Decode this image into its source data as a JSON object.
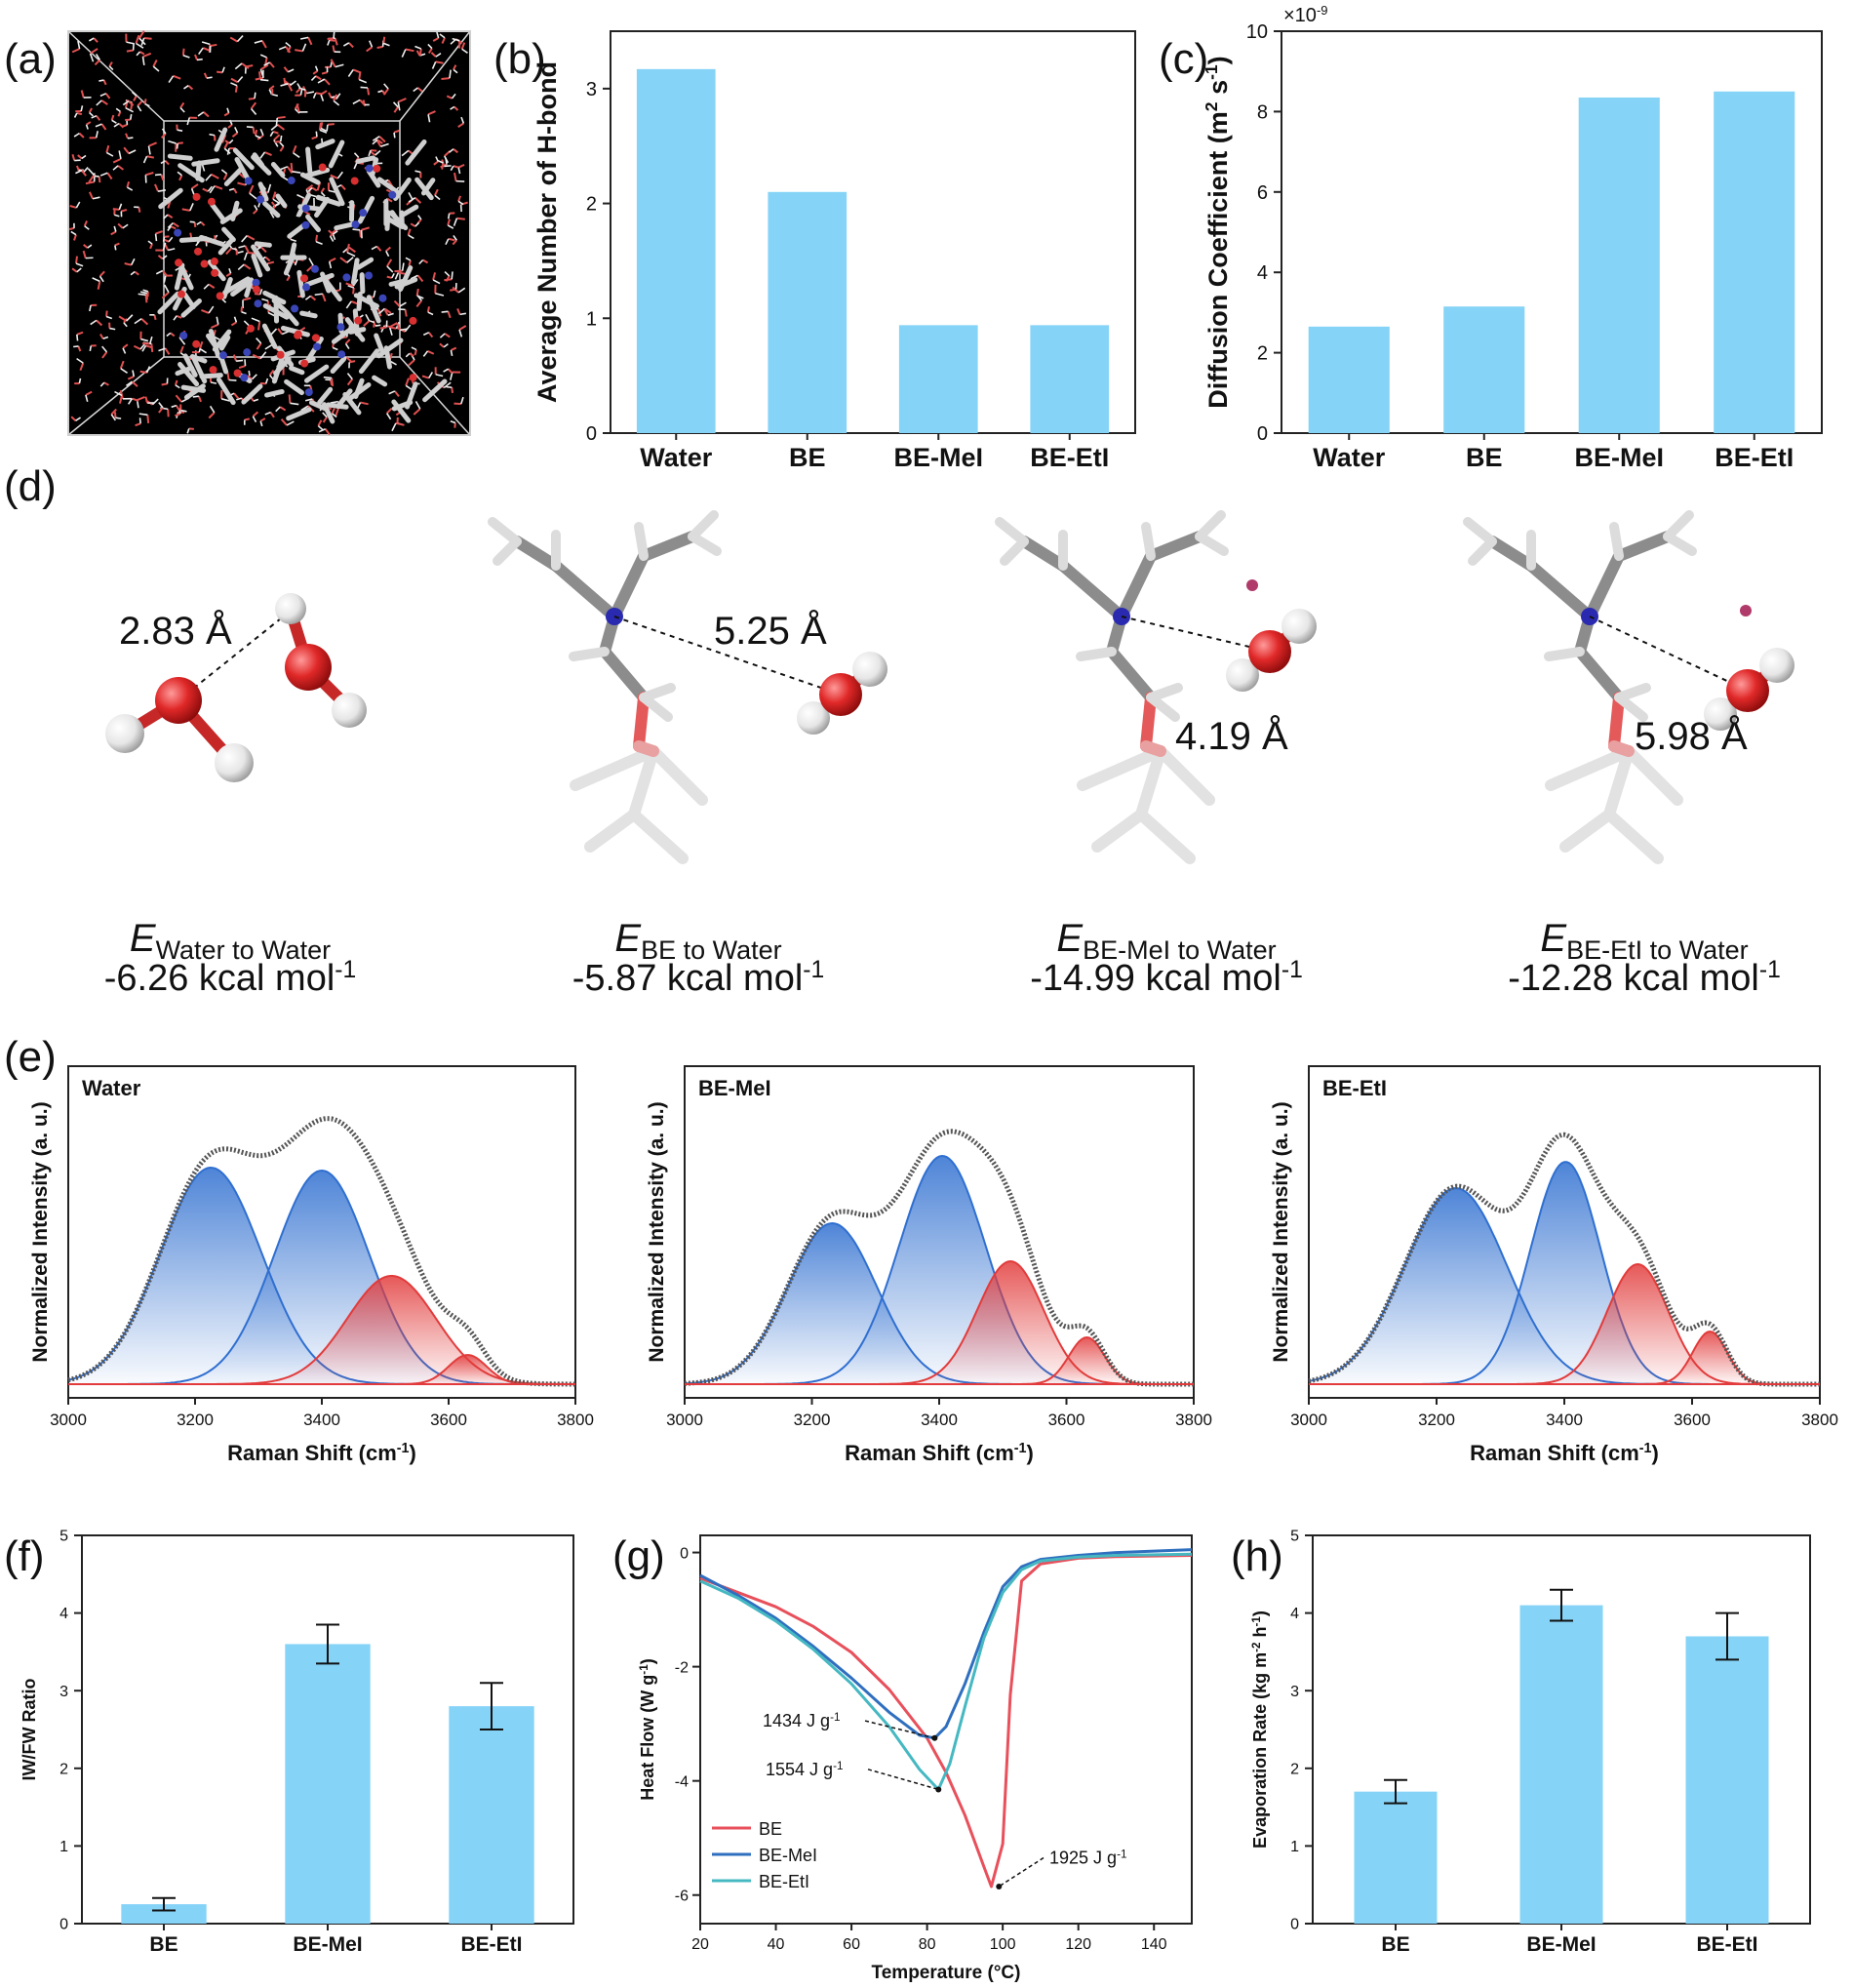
{
  "panel_letters": [
    "(a)",
    "(b)",
    "(c)",
    "(d)",
    "(e)",
    "(f)",
    "(g)",
    "(h)"
  ],
  "colors": {
    "bar": "#85d3f7",
    "blue_band": "#2f6fd0",
    "red_band": "#e23b3b",
    "envelope": "#555555",
    "line_be": "#e8505b",
    "line_bemei": "#2f6fbf",
    "line_beeti": "#45b8c2"
  },
  "panel_d": {
    "distances": [
      "2.83 Å",
      "5.25 Å",
      "4.19 Å",
      "5.98 Å"
    ],
    "energies": [
      {
        "symbol": "E",
        "subscript": "Water to Water",
        "value": "-6.26 kcal mol",
        "sup": "-1"
      },
      {
        "symbol": "E",
        "subscript": "BE to Water",
        "value": "-5.87 kcal mol",
        "sup": "-1"
      },
      {
        "symbol": "E",
        "subscript": "BE-MeI to Water",
        "value": "-14.99 kcal mol",
        "sup": "-1"
      },
      {
        "symbol": "E",
        "subscript": "BE-EtI to Water",
        "value": "-12.28 kcal mol",
        "sup": "-1"
      }
    ]
  },
  "chart_data": [
    {
      "id": "b",
      "type": "bar",
      "categories": [
        "Water",
        "BE",
        "BE-MeI",
        "BE-EtI"
      ],
      "values": [
        3.17,
        2.1,
        0.94,
        0.94
      ],
      "ylabel": "Average Number of H-bond",
      "ylim": [
        0,
        3.5
      ],
      "yticks": [
        0,
        1,
        2,
        3
      ]
    },
    {
      "id": "c",
      "type": "bar",
      "categories": [
        "Water",
        "BE",
        "BE-MeI",
        "BE-EtI"
      ],
      "values": [
        2.65,
        3.15,
        8.35,
        8.5
      ],
      "ylabel": "Diffusion Coefficient (m",
      "ylabel_sup": "2",
      "ylabel_mid": " s",
      "ylabel_sup2": "-1",
      "ylabel_end": ")",
      "scale_label": "×10",
      "scale_sup": "-9",
      "ylim": [
        0,
        10
      ],
      "yticks": [
        0,
        2,
        4,
        6,
        8,
        10
      ]
    },
    {
      "id": "e",
      "type": "area",
      "xlabel": "Raman Shift (cm",
      "xlabel_sup": "-1",
      "xlabel_end": ")",
      "ylabel": "Normalized Intensity (a. u.)",
      "xlim": [
        3000,
        3800
      ],
      "xticks": [
        3000,
        3200,
        3400,
        3600,
        3800
      ],
      "subplots": [
        {
          "label": "Water",
          "peaks": [
            {
              "center": 3225,
              "amp": 0.74,
              "sigma": 80,
              "band": "blue"
            },
            {
              "center": 3400,
              "amp": 0.73,
              "sigma": 75,
              "band": "blue"
            },
            {
              "center": 3510,
              "amp": 0.37,
              "sigma": 70,
              "band": "red"
            },
            {
              "center": 3630,
              "amp": 0.1,
              "sigma": 30,
              "band": "red"
            }
          ]
        },
        {
          "label": "BE-MeI",
          "peaks": [
            {
              "center": 3232,
              "amp": 0.55,
              "sigma": 70,
              "band": "blue"
            },
            {
              "center": 3405,
              "amp": 0.78,
              "sigma": 68,
              "band": "blue"
            },
            {
              "center": 3512,
              "amp": 0.42,
              "sigma": 52,
              "band": "red"
            },
            {
              "center": 3632,
              "amp": 0.16,
              "sigma": 28,
              "band": "red"
            }
          ]
        },
        {
          "label": "BE-EtI",
          "peaks": [
            {
              "center": 3230,
              "amp": 0.67,
              "sigma": 80,
              "band": "blue"
            },
            {
              "center": 3402,
              "amp": 0.76,
              "sigma": 55,
              "band": "blue"
            },
            {
              "center": 3515,
              "amp": 0.41,
              "sigma": 48,
              "band": "red"
            },
            {
              "center": 3628,
              "amp": 0.18,
              "sigma": 27,
              "band": "red"
            }
          ]
        }
      ]
    },
    {
      "id": "f",
      "type": "bar",
      "categories": [
        "BE",
        "BE-MeI",
        "BE-EtI"
      ],
      "values": [
        0.25,
        3.6,
        2.8
      ],
      "errors": [
        0.08,
        0.25,
        0.3
      ],
      "ylabel": "IW/FW Ratio",
      "ylim": [
        0,
        5
      ],
      "yticks": [
        0,
        1,
        2,
        3,
        4,
        5
      ]
    },
    {
      "id": "g",
      "type": "line",
      "xlabel": "Temperature (°C)",
      "ylabel": "Heat Flow (W g",
      "ylabel_sup": "-1",
      "ylabel_end": ")",
      "xlim": [
        20,
        150
      ],
      "ylim": [
        -6.5,
        0.3
      ],
      "xticks": [
        20,
        40,
        60,
        80,
        100,
        120,
        140
      ],
      "yticks": [
        0,
        -2,
        -4,
        -6
      ],
      "legend_position": "bottom-left",
      "series": [
        {
          "name": "BE",
          "x": [
            20,
            30,
            40,
            50,
            60,
            70,
            80,
            85,
            90,
            95,
            97,
            100,
            102,
            105,
            110,
            120,
            130,
            150
          ],
          "y": [
            -0.45,
            -0.7,
            -0.95,
            -1.3,
            -1.75,
            -2.4,
            -3.25,
            -3.85,
            -4.6,
            -5.5,
            -5.85,
            -5.1,
            -2.5,
            -0.5,
            -0.2,
            -0.1,
            -0.07,
            -0.05
          ]
        },
        {
          "name": "BE-MeI",
          "x": [
            20,
            30,
            40,
            50,
            60,
            70,
            78,
            82,
            85,
            90,
            95,
            100,
            105,
            110,
            120,
            130,
            150
          ],
          "y": [
            -0.4,
            -0.75,
            -1.15,
            -1.65,
            -2.2,
            -2.8,
            -3.2,
            -3.25,
            -3.05,
            -2.3,
            -1.4,
            -0.6,
            -0.25,
            -0.12,
            -0.05,
            0.0,
            0.05
          ]
        },
        {
          "name": "BE-EtI",
          "x": [
            20,
            30,
            40,
            50,
            60,
            70,
            78,
            83,
            86,
            90,
            95,
            100,
            105,
            110,
            120,
            130,
            150
          ],
          "y": [
            -0.5,
            -0.8,
            -1.2,
            -1.7,
            -2.3,
            -3.05,
            -3.8,
            -4.15,
            -3.7,
            -2.7,
            -1.5,
            -0.7,
            -0.3,
            -0.15,
            -0.08,
            -0.05,
            -0.03
          ]
        }
      ],
      "annotations": [
        {
          "text": "1434 J g",
          "sup": "-1"
        },
        {
          "text": "1554 J g",
          "sup": "-1"
        },
        {
          "text": "1925 J g",
          "sup": "-1"
        }
      ]
    },
    {
      "id": "h",
      "type": "bar",
      "categories": [
        "BE",
        "BE-MeI",
        "BE-EtI"
      ],
      "values": [
        1.7,
        4.1,
        3.7
      ],
      "errors": [
        0.15,
        0.2,
        0.3
      ],
      "ylabel": "Evaporation Rate (kg m",
      "ylabel_sup": "-2",
      "ylabel_mid": " h",
      "ylabel_sup2": "-1",
      "ylabel_end": ")",
      "ylim": [
        0,
        5
      ],
      "yticks": [
        0,
        1,
        2,
        3,
        4,
        5
      ]
    }
  ]
}
